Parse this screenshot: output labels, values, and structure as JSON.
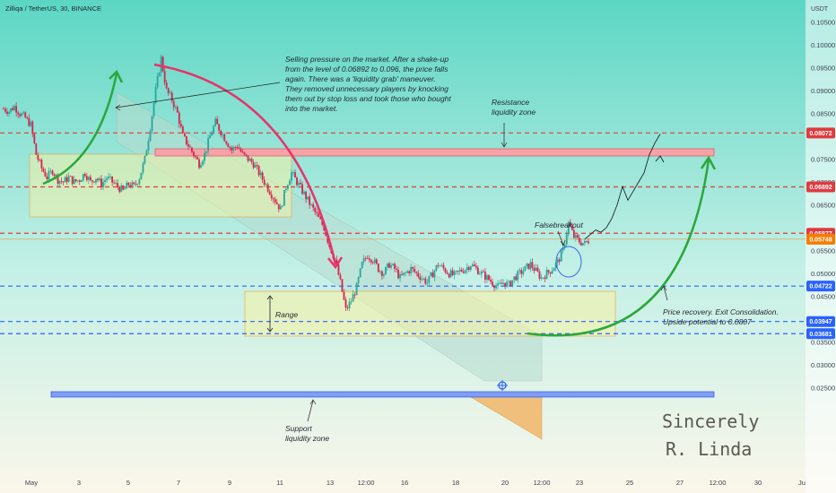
{
  "chart_data": {
    "type": "candlestick",
    "symbol": "Zilliqa / TetherUS, 30, BINANCE",
    "currency": "USDT",
    "ylim": [
      0.0235,
      0.106
    ],
    "y_ticks": [
      "0.10500",
      "0.10000",
      "0.09500",
      "0.09000",
      "0.08500",
      "0.07500",
      "0.07000",
      "0.06500",
      "0.05500",
      "0.05000",
      "0.04500",
      "0.04000",
      "0.03500",
      "0.03000",
      "0.02500"
    ],
    "x_ticks": [
      "May",
      "3",
      "5",
      "7",
      "9",
      "11",
      "13",
      "12:00",
      "16",
      "18",
      "20",
      "12:00",
      "23",
      "25",
      "27",
      "12:00",
      "30",
      "Ju"
    ],
    "price_labels": [
      {
        "text": "0.08072",
        "value": 0.08072,
        "color": "#e03a3e"
      },
      {
        "text": "0.06892",
        "value": 0.06892,
        "color": "#e03a3e"
      },
      {
        "text": "0.05877",
        "value": 0.05877,
        "color": "#e03a3e"
      },
      {
        "text": "0.05748",
        "value": 0.05748,
        "color": "#f57c00"
      },
      {
        "text": "0.04722",
        "value": 0.04722,
        "color": "#2962ff"
      },
      {
        "text": "0.03947",
        "value": 0.03947,
        "color": "#2962ff"
      },
      {
        "text": "0.03681",
        "value": 0.03681,
        "color": "#2962ff"
      }
    ],
    "levels": [
      {
        "value": 0.08072,
        "color": "#e03a3e"
      },
      {
        "value": 0.06892,
        "color": "#e03a3e"
      },
      {
        "value": 0.05877,
        "color": "#e03a3e"
      },
      {
        "value": 0.04722,
        "color": "#2962ff"
      },
      {
        "value": 0.03947,
        "color": "#2962ff"
      },
      {
        "value": 0.03681,
        "color": "#2962ff"
      }
    ],
    "price_path": [
      0.086,
      0.0855,
      0.0865,
      0.085,
      0.084,
      0.0825,
      0.076,
      0.073,
      0.071,
      0.0725,
      0.0705,
      0.07,
      0.071,
      0.07,
      0.0705,
      0.072,
      0.07,
      0.071,
      0.0695,
      0.071,
      0.07,
      0.069,
      0.068,
      0.0695,
      0.069,
      0.071,
      0.075,
      0.082,
      0.09,
      0.097,
      0.09,
      0.088,
      0.085,
      0.08,
      0.078,
      0.076,
      0.074,
      0.076,
      0.08,
      0.083,
      0.081,
      0.079,
      0.077,
      0.078,
      0.076,
      0.075,
      0.074,
      0.072,
      0.07,
      0.068,
      0.066,
      0.064,
      0.069,
      0.072,
      0.07,
      0.068,
      0.066,
      0.064,
      0.062,
      0.06,
      0.056,
      0.053,
      0.048,
      0.042,
      0.044,
      0.047,
      0.052,
      0.054,
      0.053,
      0.051,
      0.05,
      0.052,
      0.051,
      0.049,
      0.05,
      0.051,
      0.05,
      0.049,
      0.048,
      0.05,
      0.052,
      0.051,
      0.05,
      0.0495,
      0.0505,
      0.051,
      0.052,
      0.051,
      0.05,
      0.049,
      0.048,
      0.047,
      0.048,
      0.0475,
      0.049,
      0.05,
      0.051,
      0.052,
      0.0505,
      0.049,
      0.05,
      0.051,
      0.0525,
      0.055,
      0.061,
      0.058,
      0.057,
      0.0565,
      0.0575
    ],
    "projection_path": [
      0.0575,
      0.0585,
      0.0595,
      0.059,
      0.06,
      0.062,
      0.065,
      0.069,
      0.066,
      0.068,
      0.07,
      0.072,
      0.076,
      0.0785,
      0.0805
    ],
    "zones": [
      {
        "label": "Range"
      },
      {
        "label": "Resistance liquidity zone"
      },
      {
        "label": "Support liquidity zone"
      }
    ],
    "annotations": {
      "selling": [
        "Selling pressure on the market. After a shake-up",
        "from the level of 0.06892 to 0.096, the price falls",
        "again. There was a 'liquidity grab' maneuver.",
        "They removed unnecessary players by knocking",
        "them out by stop loss and took those who bought",
        "into the market."
      ],
      "resistance": [
        "Resistance",
        "liquidity zone"
      ],
      "false_breakout": "Falsebreakout",
      "range": "Range",
      "recovery": [
        "Price recovery. Exit Consolidation.",
        "Upside potential to 0.0807"
      ],
      "support": [
        "Support",
        "liquidity zone"
      ],
      "signature": [
        "Sincerely",
        "R. Linda"
      ]
    }
  }
}
